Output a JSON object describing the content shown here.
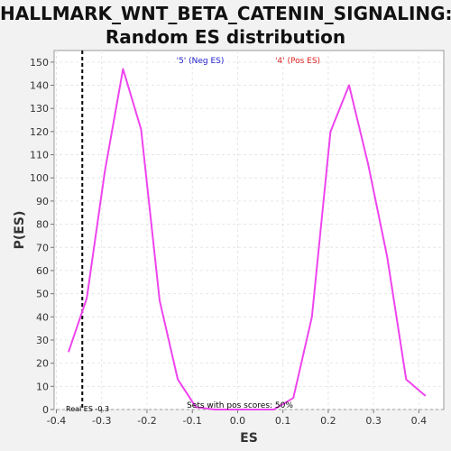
{
  "chart_data": {
    "type": "line",
    "title_lines": [
      "HALLMARK_WNT_BETA_CATENIN_SIGNALING:",
      "Random ES distribution"
    ],
    "xlabel": "ES",
    "ylabel": "P(ES)",
    "xlim": [
      -0.405,
      0.455
    ],
    "ylim": [
      0,
      155
    ],
    "xticks": [
      -0.4,
      -0.3,
      -0.2,
      -0.1,
      0.0,
      0.1,
      0.2,
      0.3,
      0.4
    ],
    "xtick_labels": [
      "-0.4",
      "-0.3",
      "-0.2",
      "-0.1",
      "0.0",
      "0.1",
      "0.2",
      "0.3",
      "0.4"
    ],
    "yticks": [
      0,
      10,
      20,
      30,
      40,
      50,
      60,
      70,
      80,
      90,
      100,
      110,
      120,
      130,
      140,
      150
    ],
    "ytick_labels": [
      "0",
      "10",
      "20",
      "30",
      "40",
      "50",
      "60",
      "70",
      "80",
      "90",
      "100",
      "110",
      "120",
      "130",
      "140",
      "150"
    ],
    "grid": true,
    "series": [
      {
        "color": "#ee44ee",
        "x": [
          -0.373,
          -0.333,
          -0.293,
          -0.253,
          -0.213,
          -0.172,
          -0.132,
          -0.092,
          -0.05,
          0.0,
          0.05,
          0.08,
          0.123,
          0.164,
          0.205,
          0.246,
          0.288,
          0.33,
          0.372,
          0.414
        ],
        "y": [
          25,
          48,
          103,
          147,
          121,
          47,
          13,
          1,
          0,
          0,
          0,
          0,
          5,
          40,
          120,
          140,
          106,
          66,
          13,
          6
        ]
      }
    ],
    "real_es": -0.3428,
    "real_es_color": "#000000",
    "annotations": {
      "neg_label": "'5' (Neg ES)",
      "neg_color": "#2222cc",
      "pos_label": "'4' (Pos ES)",
      "pos_color": "#dd2222",
      "real_es_label": "Real ES -0.3",
      "sets_label": "Sets with pos scores: 50%"
    }
  }
}
